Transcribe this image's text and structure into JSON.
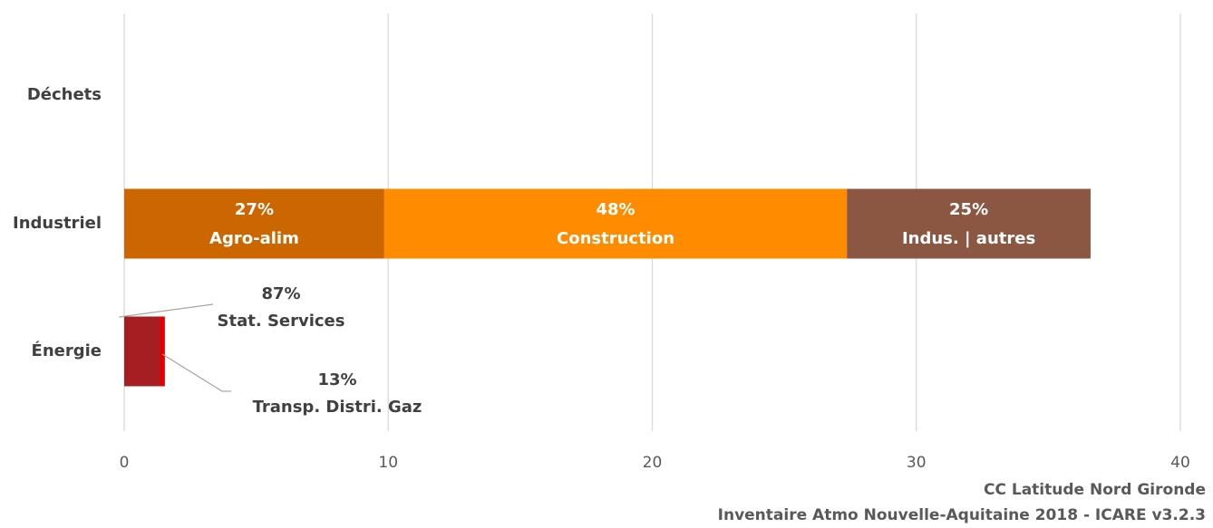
{
  "chart_data": {
    "type": "stacked-bar-horizontal",
    "categories": [
      "Déchets",
      "Industriel",
      "Énergie"
    ],
    "series": [
      {
        "name": "Agro-alim",
        "color": "#cc6600",
        "values": [
          null,
          9.85,
          null
        ],
        "share_labels": [
          null,
          "27%",
          null
        ]
      },
      {
        "name": "Construction",
        "color": "#ff8c00",
        "values": [
          null,
          17.52,
          null
        ],
        "share_labels": [
          null,
          "48%",
          null
        ]
      },
      {
        "name": "Indus. | autres",
        "color": "#8b5742",
        "values": [
          null,
          9.23,
          null
        ],
        "share_labels": [
          null,
          "25%",
          null
        ]
      },
      {
        "name": "Stat. Services",
        "color": "#a51f22",
        "values": [
          null,
          null,
          1.34
        ],
        "share_labels": [
          null,
          null,
          "87%"
        ]
      },
      {
        "name": "Transp. Distri. Gaz",
        "color": "#e00000",
        "values": [
          null,
          null,
          0.2
        ],
        "share_labels": [
          null,
          null,
          "13%"
        ]
      }
    ],
    "xlim": [
      0,
      40
    ],
    "xticks": [
      0,
      10,
      20,
      30,
      40
    ],
    "grid": true,
    "footer": [
      "CC Latitude Nord Gironde",
      "Inventaire Atmo Nouvelle-Aquitaine 2018 - ICARE v3.2.3"
    ]
  }
}
